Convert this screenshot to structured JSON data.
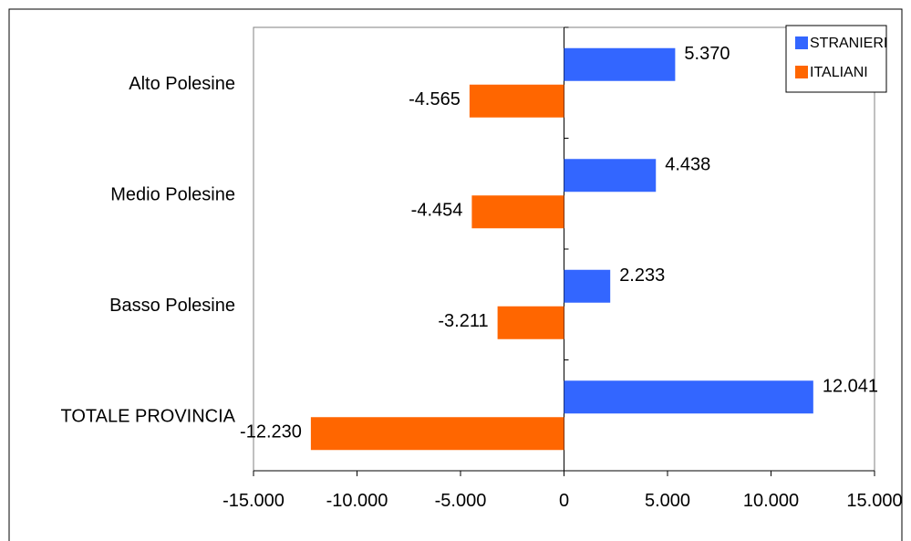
{
  "chart_data": {
    "type": "bar",
    "orientation": "horizontal",
    "title": "",
    "xlabel": "",
    "ylabel": "",
    "categories": [
      "Alto Polesine",
      "Medio Polesine",
      "Basso Polesine",
      "TOTALE PROVINCIA"
    ],
    "series": [
      {
        "name": "STRANIERI",
        "color": "#3366FF",
        "values": [
          5370,
          4438,
          2233,
          12041
        ],
        "labels": [
          "5.370",
          "4.438",
          "2.233",
          "12.041"
        ]
      },
      {
        "name": "ITALIANI",
        "color": "#FF6600",
        "values": [
          -4565,
          -4454,
          -3211,
          -12230
        ],
        "labels": [
          "-4.565",
          "-4.454",
          "-3.211",
          "-12.230"
        ]
      }
    ],
    "xlim": [
      -15000,
      15000
    ],
    "xticks": [
      -15000,
      -10000,
      -5000,
      0,
      5000,
      10000,
      15000
    ],
    "xtick_labels": [
      "-15.000",
      "-10.000",
      "-5.000",
      "0",
      "5.000",
      "10.000",
      "15.000"
    ],
    "grid": false,
    "legend_position": "top-right"
  }
}
